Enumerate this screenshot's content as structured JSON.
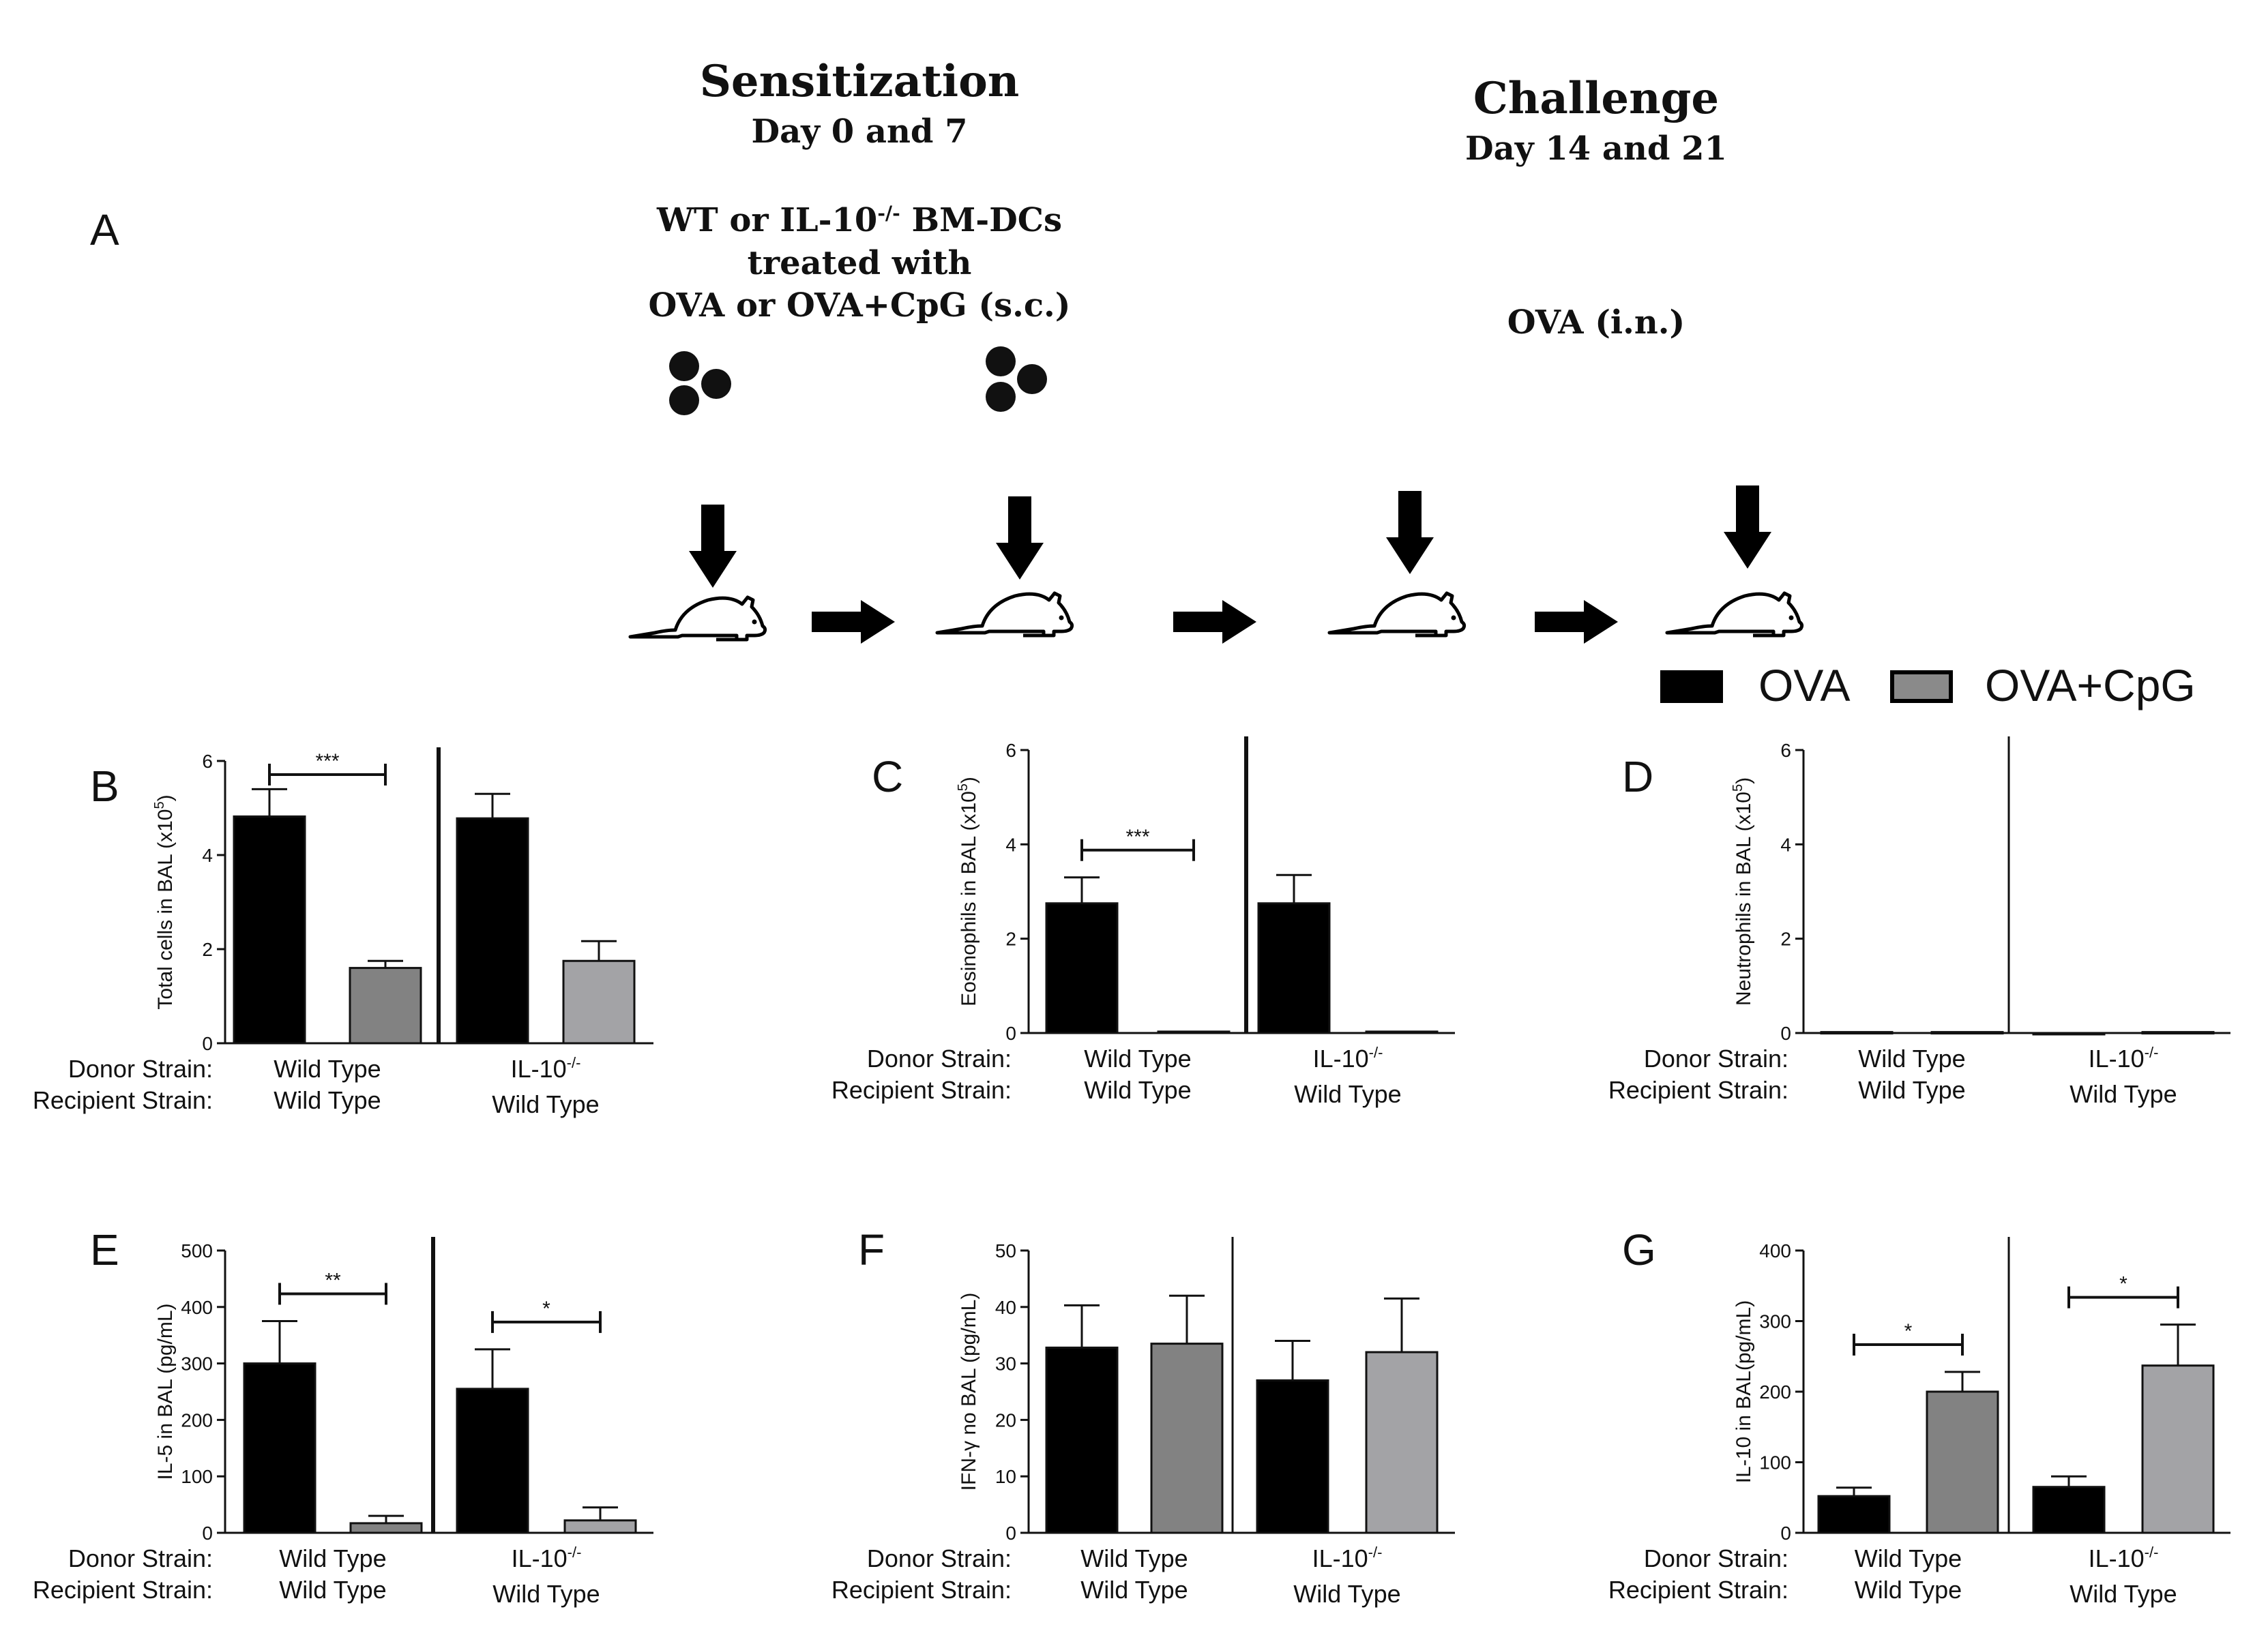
{
  "schematic": {
    "sensitization_title": "Sensitization",
    "sensitization_days": "Day 0 and  7",
    "treatment_line1": "WT or IL-10",
    "treatment_line1_sup": "-/-",
    "treatment_line1_tail": " BM-DCs",
    "treatment_line2": "treated with",
    "treatment_line3": "OVA or OVA+CpG  (s.c.)",
    "challenge_title": "Challenge",
    "challenge_days": "Day 14 and  21",
    "challenge_treatment": "OVA (i.n.)",
    "panel_letter": "A",
    "icons": [
      "cell-cluster-icon",
      "mouse-icon",
      "arrow-down-icon",
      "arrow-right-icon"
    ]
  },
  "legend": {
    "ova": {
      "label": "OVA",
      "color": "#000000"
    },
    "ovacpg": {
      "label": "OVA+CpG",
      "color": "#8a8a8a"
    }
  },
  "colors": {
    "ova": "#000000",
    "cpg_wt": "#828282",
    "cpg_il10": "#a3a3a6",
    "axis": "#111111"
  },
  "row_labels": {
    "donor": "Donor  Strain:",
    "recipient": "Recipient Strain:"
  },
  "chart_data": [
    {
      "panel": "B",
      "type": "bar",
      "ylabel": "Total cells in  BAL  (x10",
      "ylabel_sup": "5",
      "ylim": [
        0,
        6
      ],
      "yticks": [
        "0",
        "2",
        "4",
        "6"
      ],
      "groups": [
        {
          "donor": "Wild Type",
          "donor_sup": "",
          "recipient": "Wild Type",
          "bars": [
            {
              "series": "OVA",
              "value": 4.82,
              "error": 0.58
            },
            {
              "series": "OVA+CpG",
              "value": 1.6,
              "error": 0.15
            }
          ]
        },
        {
          "donor": "IL-10",
          "donor_sup": "-/-",
          "recipient": "Wild Type",
          "bars": [
            {
              "series": "OVA",
              "value": 4.78,
              "error": 0.52
            },
            {
              "series": "OVA+CpG",
              "value": 1.75,
              "error": 0.42
            }
          ]
        }
      ],
      "significance": [
        {
          "group": 0,
          "label": "***"
        }
      ]
    },
    {
      "panel": "C",
      "type": "bar",
      "ylabel": "Eosinophils in  BAL  (x10",
      "ylabel_sup": "5",
      "ylim": [
        0,
        6
      ],
      "yticks": [
        "0",
        "2",
        "4",
        "6"
      ],
      "groups": [
        {
          "donor": "Wild Type",
          "donor_sup": "",
          "recipient": "Wild Type",
          "bars": [
            {
              "series": "OVA",
              "value": 2.75,
              "error": 0.55
            },
            {
              "series": "OVA+CpG",
              "value": 0.03,
              "error": 0
            }
          ]
        },
        {
          "donor": "IL-10",
          "donor_sup": "-/-",
          "recipient": "Wild Type",
          "bars": [
            {
              "series": "OVA",
              "value": 2.75,
              "error": 0.6
            },
            {
              "series": "OVA+CpG",
              "value": 0.03,
              "error": 0
            }
          ]
        }
      ],
      "significance": [
        {
          "group": 0,
          "label": "***"
        }
      ]
    },
    {
      "panel": "D",
      "type": "bar",
      "ylabel": "Neutrophils in  BAL  (x10",
      "ylabel_sup": "5",
      "ylim": [
        0,
        6
      ],
      "yticks": [
        "0",
        "2",
        "4",
        "6"
      ],
      "groups": [
        {
          "donor": "Wild Type",
          "donor_sup": "",
          "recipient": "Wild Type",
          "bars": [
            {
              "series": "OVA",
              "value": 0.02,
              "error": 0
            },
            {
              "series": "OVA+CpG",
              "value": 0.02,
              "error": 0
            }
          ]
        },
        {
          "donor": "IL-10",
          "donor_sup": "-/-",
          "recipient": "Wild Type",
          "bars": [
            {
              "series": "OVA",
              "value": 0.0,
              "error": 0
            },
            {
              "series": "OVA+CpG",
              "value": 0.02,
              "error": 0
            }
          ]
        }
      ],
      "significance": []
    },
    {
      "panel": "E",
      "type": "bar",
      "ylabel": "IL-5 in BAL (pg/mL)",
      "ylabel_sup": "",
      "ylim": [
        0,
        500
      ],
      "yticks": [
        "0",
        "100",
        "200",
        "300",
        "400",
        "500"
      ],
      "groups": [
        {
          "donor": "Wild Type",
          "donor_sup": "",
          "recipient": "Wild Type",
          "bars": [
            {
              "series": "OVA",
              "value": 300,
              "error": 75
            },
            {
              "series": "OVA+CpG",
              "value": 17,
              "error": 13
            }
          ]
        },
        {
          "donor": "IL-10",
          "donor_sup": "-/-",
          "recipient": "Wild Type",
          "bars": [
            {
              "series": "OVA",
              "value": 255,
              "error": 70
            },
            {
              "series": "OVA+CpG",
              "value": 22,
              "error": 23
            }
          ]
        }
      ],
      "significance": [
        {
          "group": 0,
          "label": "**"
        },
        {
          "group": 1,
          "label": "*"
        }
      ]
    },
    {
      "panel": "F",
      "type": "bar",
      "ylabel": "IFN-γ no BAL (pg/mL)",
      "ylabel_sup": "",
      "ylim": [
        0,
        50
      ],
      "yticks": [
        "0",
        "10",
        "20",
        "30",
        "40",
        "50"
      ],
      "groups": [
        {
          "donor": "Wild Type",
          "donor_sup": "",
          "recipient": "Wild Type",
          "bars": [
            {
              "series": "OVA",
              "value": 32.8,
              "error": 7.5
            },
            {
              "series": "OVA+CpG",
              "value": 33.5,
              "error": 8.5
            }
          ]
        },
        {
          "donor": "IL-10",
          "donor_sup": "-/-",
          "recipient": "Wild Type",
          "bars": [
            {
              "series": "OVA",
              "value": 27,
              "error": 7
            },
            {
              "series": "OVA+CpG",
              "value": 32,
              "error": 9.5
            }
          ]
        }
      ],
      "significance": []
    },
    {
      "panel": "G",
      "type": "bar",
      "ylabel": "IL-10 in BAL(pg/mL)",
      "ylabel_sup": "",
      "ylim": [
        0,
        400
      ],
      "yticks": [
        "0",
        "100",
        "200",
        "300",
        "400"
      ],
      "groups": [
        {
          "donor": "Wild Type",
          "donor_sup": "",
          "recipient": "Wild Type",
          "bars": [
            {
              "series": "OVA",
              "value": 52,
              "error": 12
            },
            {
              "series": "OVA+CpG",
              "value": 200,
              "error": 28
            }
          ]
        },
        {
          "donor": "IL-10",
          "donor_sup": "-/-",
          "recipient": "Wild Type",
          "bars": [
            {
              "series": "OVA",
              "value": 65,
              "error": 15
            },
            {
              "series": "OVA+CpG",
              "value": 237,
              "error": 58
            }
          ]
        }
      ],
      "significance": [
        {
          "group": 0,
          "label": "*"
        },
        {
          "group": 1,
          "label": "*"
        }
      ]
    }
  ]
}
